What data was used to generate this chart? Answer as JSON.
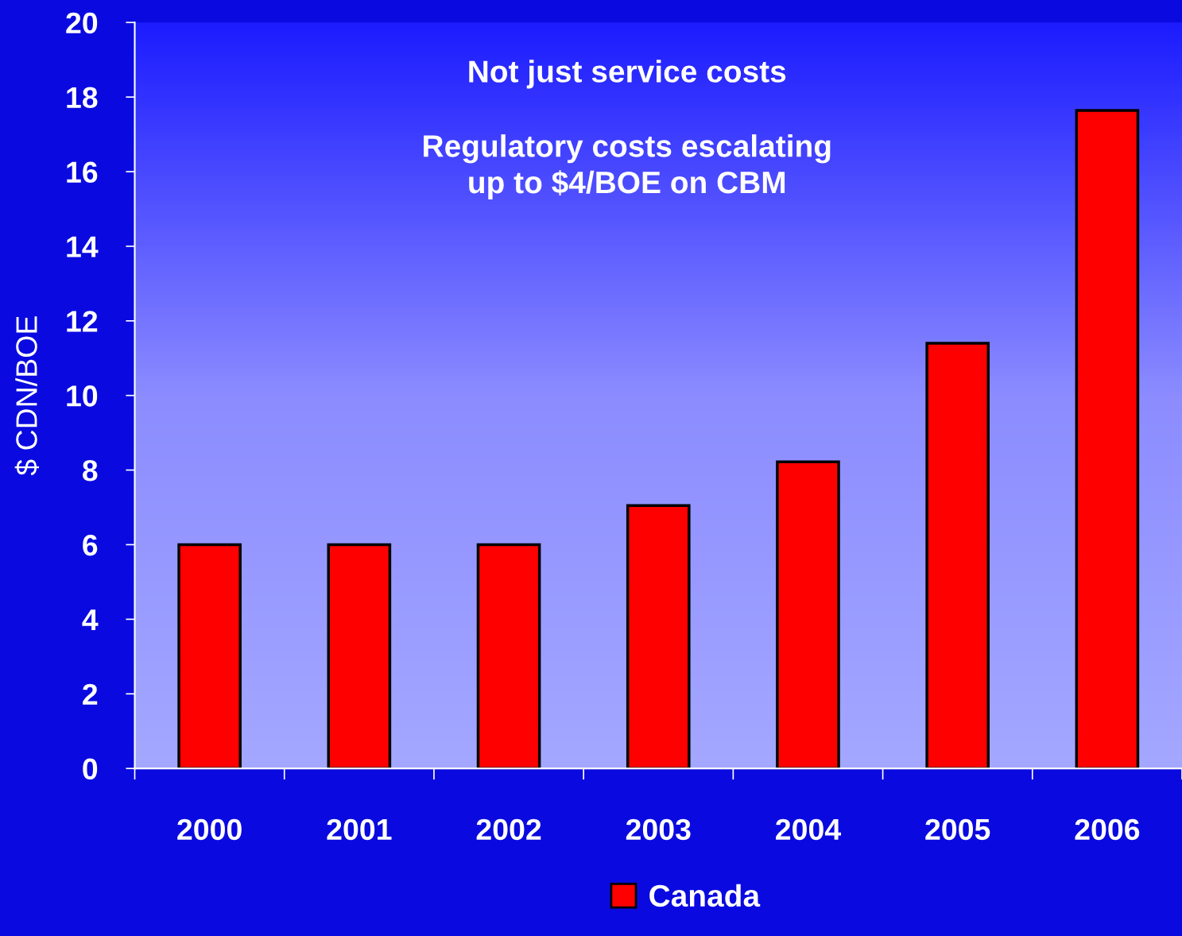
{
  "chart_data": {
    "type": "bar",
    "title": "Not just service costs",
    "subtitle": "Regulatory costs escalating\nup to $4/BOE on CBM",
    "ylabel": "$ CDN/BOE",
    "categories": [
      "2000",
      "2001",
      "2002",
      "2003",
      "2004",
      "2005",
      "2006"
    ],
    "series": [
      {
        "name": "Canada",
        "color": "#ff0000",
        "values": [
          6,
          6,
          6,
          7.05,
          8.22,
          11.4,
          17.64
        ]
      }
    ],
    "ylim": [
      0,
      20
    ],
    "yticks": [
      0,
      2,
      4,
      6,
      8,
      10,
      12,
      14,
      16,
      18,
      20
    ],
    "grid": false,
    "legend": "bottom"
  }
}
